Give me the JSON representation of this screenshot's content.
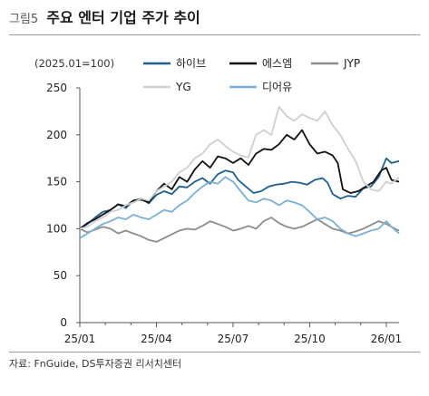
{
  "figure": {
    "number": "그림5",
    "title": "주요 엔터 기업 주가 추이",
    "source": "자료: FnGuide, DS투자증권 리서치센터"
  },
  "chart_data": {
    "type": "line",
    "ylabel": "(2025.01=100)",
    "ylim": [
      0,
      250
    ],
    "yticks": [
      0,
      50,
      100,
      150,
      200,
      250
    ],
    "xlim": [
      0,
      12.5
    ],
    "xticks": [
      {
        "pos": 0,
        "label": "25/01"
      },
      {
        "pos": 3,
        "label": "25/04"
      },
      {
        "pos": 6,
        "label": "25/07"
      },
      {
        "pos": 9,
        "label": "25/10"
      },
      {
        "pos": 12,
        "label": "26/01"
      }
    ],
    "grid": false,
    "legend_placement": "top",
    "series": [
      {
        "name": "하이브",
        "color": "#1f5f8b",
        "width": 1.8,
        "points": [
          [
            0,
            100
          ],
          [
            0.3,
            105
          ],
          [
            0.6,
            112
          ],
          [
            0.9,
            118
          ],
          [
            1.2,
            120
          ],
          [
            1.5,
            126
          ],
          [
            1.8,
            122
          ],
          [
            2.1,
            130
          ],
          [
            2.4,
            132
          ],
          [
            2.7,
            127
          ],
          [
            3.0,
            136
          ],
          [
            3.3,
            140
          ],
          [
            3.6,
            137
          ],
          [
            3.9,
            145
          ],
          [
            4.2,
            144
          ],
          [
            4.5,
            150
          ],
          [
            4.8,
            154
          ],
          [
            5.1,
            148
          ],
          [
            5.4,
            158
          ],
          [
            5.7,
            162
          ],
          [
            6.0,
            160
          ],
          [
            6.2,
            152
          ],
          [
            6.5,
            145
          ],
          [
            6.8,
            138
          ],
          [
            7.1,
            140
          ],
          [
            7.4,
            145
          ],
          [
            7.7,
            147
          ],
          [
            8.0,
            148
          ],
          [
            8.3,
            150
          ],
          [
            8.6,
            149
          ],
          [
            8.9,
            147
          ],
          [
            9.2,
            152
          ],
          [
            9.5,
            154
          ],
          [
            9.7,
            149
          ],
          [
            9.9,
            137
          ],
          [
            10.2,
            132
          ],
          [
            10.5,
            135
          ],
          [
            10.8,
            134
          ],
          [
            11.1,
            143
          ],
          [
            11.4,
            145
          ],
          [
            11.7,
            155
          ],
          [
            12.0,
            175
          ],
          [
            12.2,
            170
          ],
          [
            12.5,
            172
          ]
        ]
      },
      {
        "name": "에스엠",
        "color": "#111111",
        "width": 1.8,
        "points": [
          [
            0,
            100
          ],
          [
            0.3,
            106
          ],
          [
            0.6,
            110
          ],
          [
            0.9,
            115
          ],
          [
            1.2,
            120
          ],
          [
            1.5,
            126
          ],
          [
            1.8,
            124
          ],
          [
            2.1,
            130
          ],
          [
            2.4,
            131
          ],
          [
            2.7,
            128
          ],
          [
            3.0,
            140
          ],
          [
            3.3,
            148
          ],
          [
            3.6,
            142
          ],
          [
            3.9,
            155
          ],
          [
            4.2,
            150
          ],
          [
            4.5,
            163
          ],
          [
            4.8,
            172
          ],
          [
            5.1,
            165
          ],
          [
            5.4,
            177
          ],
          [
            5.7,
            175
          ],
          [
            6.0,
            170
          ],
          [
            6.3,
            175
          ],
          [
            6.6,
            168
          ],
          [
            6.9,
            180
          ],
          [
            7.2,
            185
          ],
          [
            7.5,
            184
          ],
          [
            7.8,
            190
          ],
          [
            8.1,
            200
          ],
          [
            8.4,
            195
          ],
          [
            8.7,
            205
          ],
          [
            9.0,
            190
          ],
          [
            9.3,
            180
          ],
          [
            9.6,
            182
          ],
          [
            9.9,
            178
          ],
          [
            10.1,
            170
          ],
          [
            10.3,
            142
          ],
          [
            10.6,
            138
          ],
          [
            10.9,
            140
          ],
          [
            11.2,
            145
          ],
          [
            11.5,
            150
          ],
          [
            11.8,
            162
          ],
          [
            12.0,
            165
          ],
          [
            12.2,
            152
          ],
          [
            12.5,
            150
          ]
        ]
      },
      {
        "name": "JYP",
        "color": "#8c8c8c",
        "width": 1.8,
        "points": [
          [
            0,
            100
          ],
          [
            0.3,
            96
          ],
          [
            0.6,
            99
          ],
          [
            0.9,
            102
          ],
          [
            1.2,
            100
          ],
          [
            1.5,
            95
          ],
          [
            1.8,
            98
          ],
          [
            2.1,
            95
          ],
          [
            2.4,
            92
          ],
          [
            2.7,
            88
          ],
          [
            3.0,
            86
          ],
          [
            3.3,
            90
          ],
          [
            3.6,
            94
          ],
          [
            3.9,
            98
          ],
          [
            4.2,
            100
          ],
          [
            4.5,
            99
          ],
          [
            4.8,
            103
          ],
          [
            5.1,
            108
          ],
          [
            5.4,
            105
          ],
          [
            5.7,
            102
          ],
          [
            6.0,
            98
          ],
          [
            6.3,
            100
          ],
          [
            6.6,
            103
          ],
          [
            6.9,
            100
          ],
          [
            7.2,
            108
          ],
          [
            7.5,
            112
          ],
          [
            7.8,
            106
          ],
          [
            8.1,
            102
          ],
          [
            8.4,
            100
          ],
          [
            8.7,
            102
          ],
          [
            9.0,
            106
          ],
          [
            9.3,
            110
          ],
          [
            9.6,
            105
          ],
          [
            9.9,
            100
          ],
          [
            10.2,
            98
          ],
          [
            10.5,
            95
          ],
          [
            10.8,
            97
          ],
          [
            11.1,
            100
          ],
          [
            11.4,
            104
          ],
          [
            11.7,
            108
          ],
          [
            12.0,
            105
          ],
          [
            12.2,
            102
          ],
          [
            12.5,
            98
          ]
        ]
      },
      {
        "name": "YG",
        "color": "#cfcfcf",
        "width": 1.8,
        "points": [
          [
            0,
            100
          ],
          [
            0.3,
            102
          ],
          [
            0.6,
            108
          ],
          [
            0.9,
            112
          ],
          [
            1.2,
            118
          ],
          [
            1.5,
            120
          ],
          [
            1.8,
            125
          ],
          [
            2.1,
            128
          ],
          [
            2.4,
            132
          ],
          [
            2.7,
            130
          ],
          [
            3.0,
            140
          ],
          [
            3.3,
            145
          ],
          [
            3.6,
            150
          ],
          [
            3.9,
            160
          ],
          [
            4.2,
            165
          ],
          [
            4.5,
            175
          ],
          [
            4.8,
            180
          ],
          [
            5.1,
            190
          ],
          [
            5.4,
            195
          ],
          [
            5.7,
            188
          ],
          [
            6.0,
            182
          ],
          [
            6.3,
            178
          ],
          [
            6.6,
            176
          ],
          [
            6.9,
            200
          ],
          [
            7.2,
            205
          ],
          [
            7.5,
            200
          ],
          [
            7.8,
            230
          ],
          [
            8.1,
            220
          ],
          [
            8.4,
            215
          ],
          [
            8.7,
            222
          ],
          [
            9.0,
            218
          ],
          [
            9.3,
            215
          ],
          [
            9.6,
            225
          ],
          [
            9.9,
            210
          ],
          [
            10.2,
            200
          ],
          [
            10.5,
            185
          ],
          [
            10.8,
            172
          ],
          [
            11.1,
            150
          ],
          [
            11.4,
            142
          ],
          [
            11.7,
            140
          ],
          [
            12.0,
            150
          ],
          [
            12.2,
            148
          ],
          [
            12.5,
            155
          ]
        ]
      },
      {
        "name": "디어유",
        "color": "#7bb0d4",
        "width": 1.8,
        "points": [
          [
            0,
            90
          ],
          [
            0.3,
            95
          ],
          [
            0.6,
            100
          ],
          [
            0.9,
            105
          ],
          [
            1.2,
            108
          ],
          [
            1.5,
            112
          ],
          [
            1.8,
            110
          ],
          [
            2.1,
            115
          ],
          [
            2.4,
            112
          ],
          [
            2.7,
            110
          ],
          [
            3.0,
            115
          ],
          [
            3.3,
            120
          ],
          [
            3.6,
            118
          ],
          [
            3.9,
            125
          ],
          [
            4.2,
            130
          ],
          [
            4.5,
            138
          ],
          [
            4.8,
            145
          ],
          [
            5.1,
            150
          ],
          [
            5.4,
            148
          ],
          [
            5.7,
            155
          ],
          [
            6.0,
            150
          ],
          [
            6.3,
            140
          ],
          [
            6.6,
            130
          ],
          [
            6.9,
            128
          ],
          [
            7.2,
            132
          ],
          [
            7.5,
            130
          ],
          [
            7.8,
            125
          ],
          [
            8.1,
            130
          ],
          [
            8.4,
            128
          ],
          [
            8.7,
            125
          ],
          [
            9.0,
            118
          ],
          [
            9.3,
            110
          ],
          [
            9.6,
            112
          ],
          [
            9.9,
            108
          ],
          [
            10.2,
            100
          ],
          [
            10.5,
            95
          ],
          [
            10.8,
            92
          ],
          [
            11.1,
            95
          ],
          [
            11.4,
            98
          ],
          [
            11.7,
            100
          ],
          [
            12.0,
            108
          ],
          [
            12.2,
            102
          ],
          [
            12.5,
            95
          ]
        ]
      }
    ]
  }
}
